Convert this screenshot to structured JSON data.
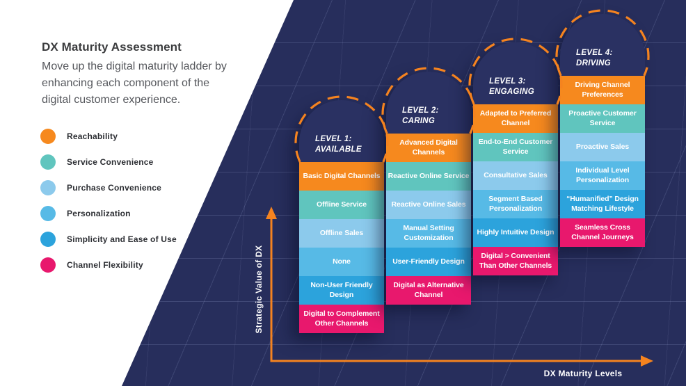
{
  "panel": {
    "title": "DX Maturity Assessment",
    "subtitle": "Move up the digital maturity ladder by enhancing each component of the digital customer experience.",
    "legend": [
      {
        "label": "Reachability",
        "color": "#F6891E"
      },
      {
        "label": "Service Convenience",
        "color": "#60C5BE"
      },
      {
        "label": "Purchase Convenience",
        "color": "#8CCAEC"
      },
      {
        "label": "Personalization",
        "color": "#57BAE6"
      },
      {
        "label": "Simplicity and Ease of Use",
        "color": "#2CA3DC"
      },
      {
        "label": "Channel Flexibility",
        "color": "#E8186D"
      }
    ]
  },
  "chart": {
    "x_axis_label": "DX Maturity Levels",
    "y_axis_label": "Strategic Value of DX",
    "accent_color": "#F5831F",
    "background_color": "#272E5C",
    "row_colors": [
      "#F6891E",
      "#60C5BE",
      "#8CCAEC",
      "#57BAE6",
      "#2CA3DC",
      "#E8186D"
    ],
    "levels": [
      {
        "name": "Level 1:",
        "subname": "Available",
        "cells": [
          "Basic Digital Channels",
          "Offline Service",
          "Offline Sales",
          "None",
          "Non-User Friendly Design",
          "Digital to Complement Other Channels"
        ]
      },
      {
        "name": "Level 2:",
        "subname": "Caring",
        "cells": [
          "Advanced Digital Channels",
          "Reactive Online Service",
          "Reactive Online Sales",
          "Manual Setting Customization",
          "User-Friendly Design",
          "Digital as Alternative Channel"
        ]
      },
      {
        "name": "Level 3:",
        "subname": "Engaging",
        "cells": [
          "Adapted to Preferred Channel",
          "End-to-End Customer Service",
          "Consultative Sales",
          "Segment Based Personalization",
          "Highly Intuitive Design",
          "Digital > Convenient Than Other Channels"
        ]
      },
      {
        "name": "Level 4:",
        "subname": "Driving",
        "cells": [
          "Driving Channel Preferences",
          "Proactive Customer Service",
          "Proactive Sales",
          "Individual Level Personalization",
          "“Humanified” Design Matching Lifestyle",
          "Seamless Cross Channel Journeys"
        ]
      }
    ]
  }
}
